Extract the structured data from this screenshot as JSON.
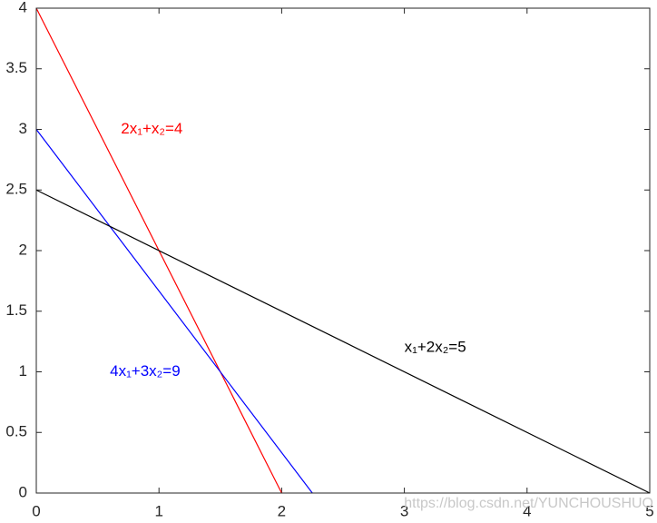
{
  "chart_data": {
    "type": "line",
    "series": [
      {
        "color": "#ff0000",
        "x": [
          0,
          2
        ],
        "values": [
          4,
          0
        ]
      },
      {
        "color": "#0000ff",
        "x": [
          0,
          2.25
        ],
        "values": [
          3,
          0
        ]
      },
      {
        "color": "#000000",
        "x": [
          0,
          5
        ],
        "values": [
          2.5,
          0
        ]
      }
    ],
    "annotations": [
      {
        "text": "2x₁+x₂=4",
        "x": 0.69,
        "y": 3.0,
        "color": "#ff0000"
      },
      {
        "text": "4x₁+3x₂=9",
        "x": 0.6,
        "y": 1.0,
        "color": "#0000ff"
      },
      {
        "text": "x₁+2x₂=5",
        "x": 3.0,
        "y": 1.2,
        "color": "#000000"
      }
    ],
    "xlim": [
      0,
      5
    ],
    "xticks": [
      0,
      1,
      2,
      3,
      4,
      5
    ],
    "ylim": [
      0,
      4
    ],
    "yticks": [
      0,
      0.5,
      1,
      1.5,
      2,
      2.5,
      3,
      3.5,
      4
    ],
    "grid": false,
    "watermark": "https://blog.csdn.net/YUNCHOUSHUO"
  }
}
